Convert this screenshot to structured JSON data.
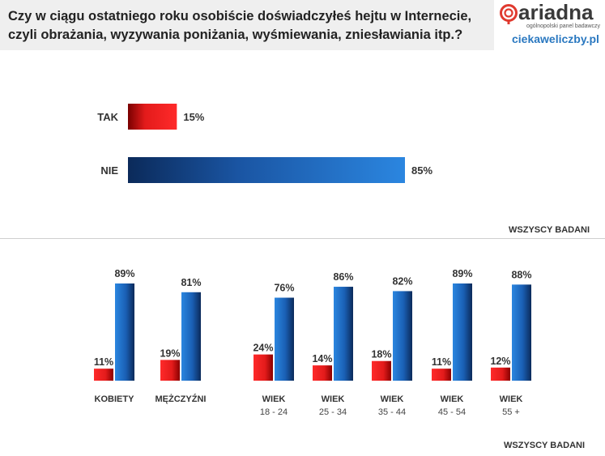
{
  "title_line1": "Czy w ciągu ostatniego roku osobiście doświadczyłeś hejtu w Internecie,",
  "title_line2": "czyli obrażania, wyzywania poniżania, wyśmiewania, zniesławiania itp.?",
  "logo": {
    "name": "ariadna",
    "tagline": "ogólnopolski panel badawczy",
    "site": "ciekaweliczby.pl",
    "color": "#e03a2f"
  },
  "footnote_top": "WSZYSCY BADANI",
  "footnote_bottom": "WSZYSCY BADANI",
  "colors": {
    "red": "#e31b1b",
    "blue": "#1f6fc4"
  },
  "chart_data": [
    {
      "type": "bar",
      "orientation": "horizontal",
      "categories": [
        "TAK",
        "NIE"
      ],
      "values": [
        15,
        85
      ],
      "value_labels": [
        "15%",
        "85%"
      ],
      "xlim": [
        0,
        85
      ]
    },
    {
      "type": "bar",
      "orientation": "vertical",
      "categories": [
        {
          "line1": "KOBIETY",
          "line2": ""
        },
        {
          "line1": "MĘŻCZYŹNI",
          "line2": ""
        },
        {
          "line1": "WIEK",
          "line2": "18 - 24"
        },
        {
          "line1": "WIEK",
          "line2": "25 - 34"
        },
        {
          "line1": "WIEK",
          "line2": "35 - 44"
        },
        {
          "line1": "WIEK",
          "line2": "45 - 54"
        },
        {
          "line1": "WIEK",
          "line2": "55 +"
        }
      ],
      "series": [
        {
          "name": "TAK",
          "values": [
            11,
            19,
            24,
            14,
            18,
            11,
            12
          ],
          "labels": [
            "11%",
            "19%",
            "24%",
            "14%",
            "18%",
            "11%",
            "12%"
          ]
        },
        {
          "name": "NIE",
          "values": [
            89,
            81,
            76,
            86,
            82,
            89,
            88
          ],
          "labels": [
            "89%",
            "81%",
            "76%",
            "86%",
            "82%",
            "89%",
            "88%"
          ]
        }
      ],
      "ylim": [
        0,
        89
      ]
    }
  ]
}
